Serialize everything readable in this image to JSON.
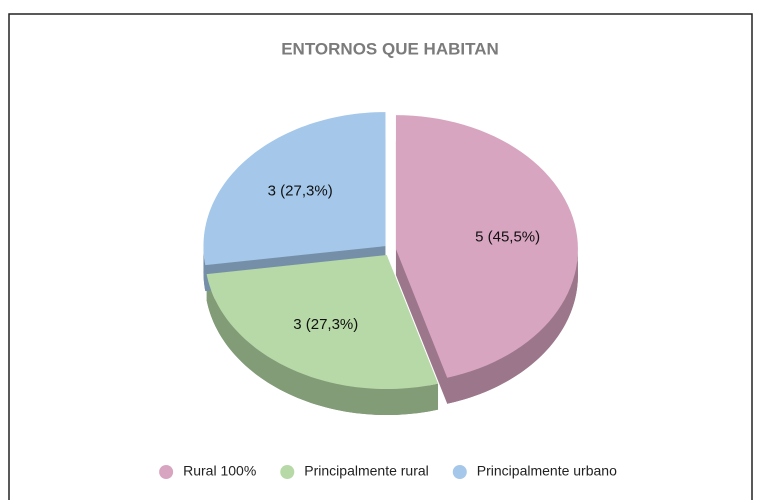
{
  "chart_data": {
    "type": "pie3d",
    "title": "ENTORNOS QUE HABITAN",
    "categories": [
      "Rural 100%",
      "Principalmente rural",
      "Principalmente urbano"
    ],
    "values": [
      5,
      3,
      3
    ],
    "value_labels": [
      "5 (45,5%)",
      "3 (27,3%)",
      "3 (27,3%)"
    ],
    "colors": [
      "#d8a5c1",
      "#b6d9a7",
      "#a4c7ea"
    ],
    "legend": "bottom"
  }
}
